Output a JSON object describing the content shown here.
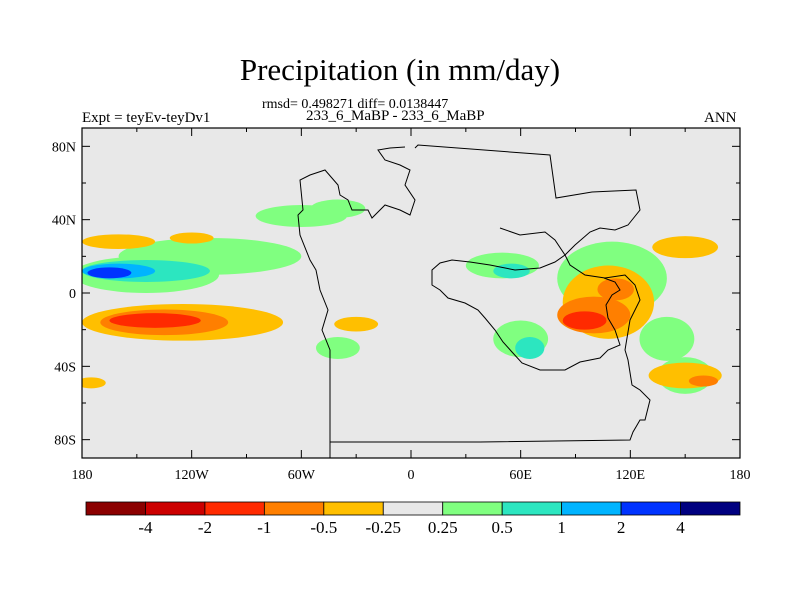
{
  "chart_data": {
    "type": "heatmap",
    "title": "Precipitation (in mm/day)",
    "stats_line": "rmsd= 0.498271 diff= 0.0138447",
    "cases_line": "233_6_MaBP - 233_6_MaBP",
    "left_label": "Expt = teyEv-teyDv1",
    "right_label": "ANN",
    "xlim": [
      -180,
      180
    ],
    "ylim": [
      -90,
      90
    ],
    "x_ticks": [
      -180,
      -120,
      -60,
      0,
      60,
      120,
      180
    ],
    "x_tick_labels": [
      "180",
      "120W",
      "60W",
      "0",
      "60E",
      "120E",
      "180"
    ],
    "y_ticks": [
      80,
      40,
      0,
      -40,
      -80
    ],
    "y_tick_labels": [
      "80N",
      "40N",
      "0",
      "40S",
      "80S"
    ],
    "colorbar": {
      "colors": [
        "#8b0000",
        "#cc0000",
        "#ff2a00",
        "#ff7f00",
        "#ffbf00",
        "#e8e8e8",
        "#80ff80",
        "#2ce6c0",
        "#00b4ff",
        "#0033ff",
        "#000080"
      ],
      "labels": [
        "-4",
        "-2",
        "-1",
        "-0.5",
        "-0.25",
        "0.25",
        "0.5",
        "1",
        "2",
        "4"
      ]
    },
    "features": [
      {
        "level": 5,
        "lon": -80,
        "lat": 5,
        "rx": 30,
        "ry": 30
      },
      {
        "level": 6,
        "lon": -145,
        "lat": 10,
        "rx": 40,
        "ry": 10
      },
      {
        "level": 6,
        "lon": -110,
        "lat": 20,
        "rx": 50,
        "ry": 10
      },
      {
        "level": 6,
        "lon": -60,
        "lat": 42,
        "rx": 25,
        "ry": 6
      },
      {
        "level": 6,
        "lon": -40,
        "lat": 46,
        "rx": 15,
        "ry": 5
      },
      {
        "level": 6,
        "lon": -40,
        "lat": -30,
        "rx": 12,
        "ry": 6
      },
      {
        "level": 4,
        "lon": -160,
        "lat": 28,
        "rx": 20,
        "ry": 4
      },
      {
        "level": 4,
        "lon": -120,
        "lat": 30,
        "rx": 12,
        "ry": 3
      },
      {
        "level": 7,
        "lon": -145,
        "lat": 12,
        "rx": 35,
        "ry": 6
      },
      {
        "level": 8,
        "lon": -160,
        "lat": 12,
        "rx": 20,
        "ry": 4
      },
      {
        "level": 9,
        "lon": -165,
        "lat": 11,
        "rx": 12,
        "ry": 3
      },
      {
        "level": 4,
        "lon": -125,
        "lat": -16,
        "rx": 55,
        "ry": 10
      },
      {
        "level": 3,
        "lon": -135,
        "lat": -16,
        "rx": 35,
        "ry": 7
      },
      {
        "level": 2,
        "lon": -140,
        "lat": -15,
        "rx": 25,
        "ry": 4
      },
      {
        "level": 4,
        "lon": -30,
        "lat": -17,
        "rx": 12,
        "ry": 4
      },
      {
        "level": 6,
        "lon": 50,
        "lat": 15,
        "rx": 20,
        "ry": 7
      },
      {
        "level": 7,
        "lon": 55,
        "lat": 12,
        "rx": 10,
        "ry": 4
      },
      {
        "level": 6,
        "lon": 60,
        "lat": -25,
        "rx": 15,
        "ry": 10
      },
      {
        "level": 7,
        "lon": 65,
        "lat": -30,
        "rx": 8,
        "ry": 6
      },
      {
        "level": 6,
        "lon": 110,
        "lat": 8,
        "rx": 30,
        "ry": 20
      },
      {
        "level": 6,
        "lon": 140,
        "lat": -25,
        "rx": 15,
        "ry": 12
      },
      {
        "level": 6,
        "lon": 150,
        "lat": -45,
        "rx": 15,
        "ry": 10
      },
      {
        "level": 4,
        "lon": 108,
        "lat": -5,
        "rx": 25,
        "ry": 20
      },
      {
        "level": 4,
        "lon": 150,
        "lat": 25,
        "rx": 18,
        "ry": 6
      },
      {
        "level": 4,
        "lon": 150,
        "lat": -45,
        "rx": 20,
        "ry": 7
      },
      {
        "level": 3,
        "lon": 100,
        "lat": -12,
        "rx": 20,
        "ry": 10
      },
      {
        "level": 3,
        "lon": 112,
        "lat": 2,
        "rx": 10,
        "ry": 6
      },
      {
        "level": 2,
        "lon": 95,
        "lat": -15,
        "rx": 12,
        "ry": 5
      },
      {
        "level": 3,
        "lon": 160,
        "lat": -48,
        "rx": 8,
        "ry": 3
      },
      {
        "level": 4,
        "lon": -175,
        "lat": -49,
        "rx": 8,
        "ry": 3
      }
    ]
  }
}
